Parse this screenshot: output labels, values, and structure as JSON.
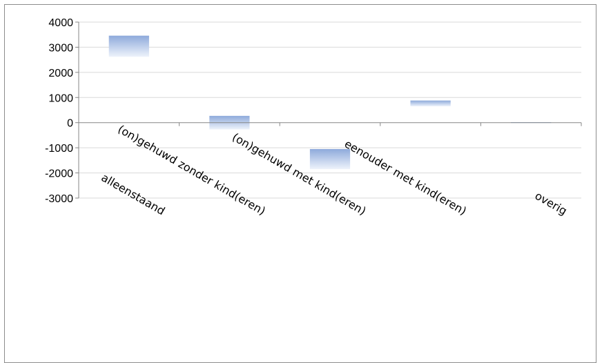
{
  "chart_data": {
    "type": "bar",
    "subtype": "floating",
    "categories": [
      "alleenstaand",
      "(on)gehuwd zonder kind(eren)",
      "(on)gehuwd met kind(eren)",
      "eenouder met kind(eren)",
      "overig"
    ],
    "ranges": [
      [
        2620,
        3460
      ],
      [
        -270,
        270
      ],
      [
        -1850,
        -1050
      ],
      [
        650,
        880
      ],
      [
        -20,
        20
      ]
    ],
    "ylim": [
      -3000,
      4000
    ],
    "yticks": [
      4000,
      3000,
      2000,
      1000,
      0,
      -1000,
      -2000,
      -3000
    ],
    "ytick_labels": [
      "4000",
      "3000",
      "2000",
      "1000",
      "0",
      "-1000",
      "-2000",
      "-3000"
    ],
    "grid": true,
    "legend": "none",
    "colors": {
      "bar_top": "#8eaadb",
      "bar_bottom": "#eef3fb",
      "grid": "#d9d9d9",
      "axis": "#868686",
      "frame": "#8c8c8c"
    }
  }
}
